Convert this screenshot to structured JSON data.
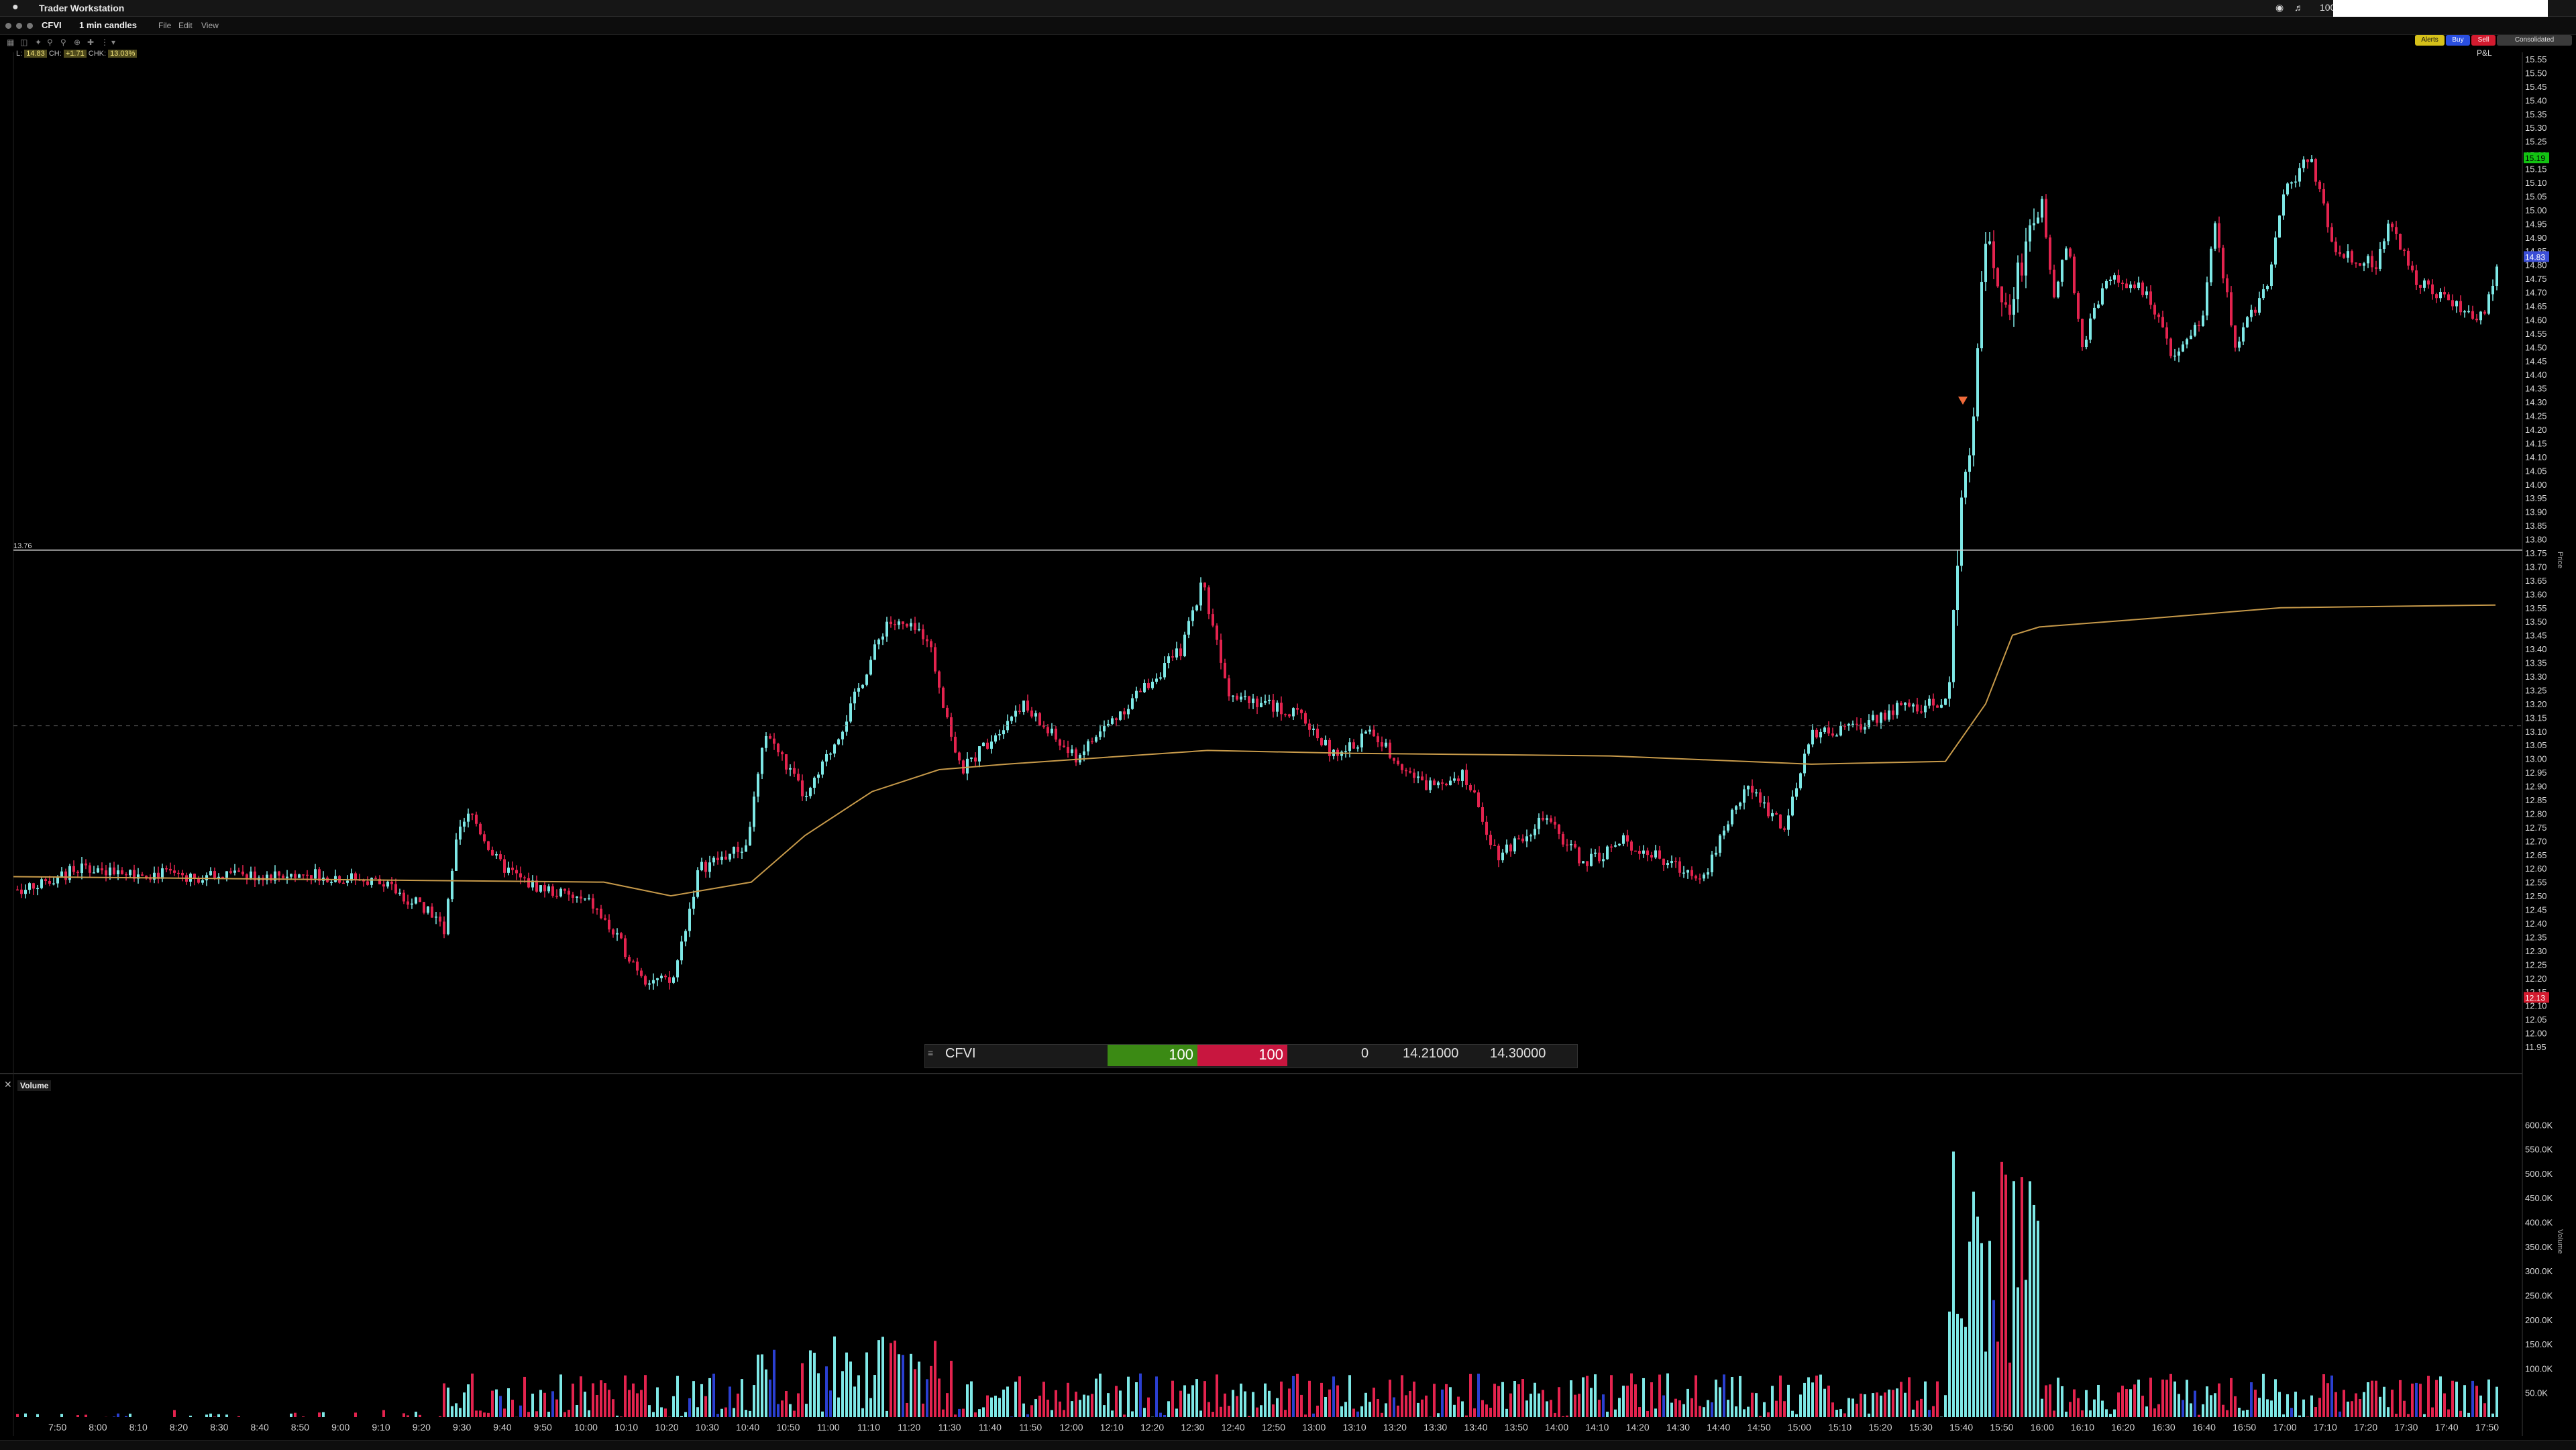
{
  "app": {
    "name": "Trader Workstation",
    "menu_right": [
      "100"
    ]
  },
  "window": {
    "symbol": "CFVI",
    "period": "1 min candles",
    "menus": [
      "File",
      "Edit",
      "View"
    ]
  },
  "buttons": {
    "alerts": "Alerts",
    "buy": "Buy",
    "sell": "Sell",
    "consolidated": "Consolidated",
    "pnl": "P&L"
  },
  "infobar": {
    "l_label": "L:",
    "l_val": "14.83",
    "ch_label": "CH:",
    "ch_val": "+1.71",
    "chpct_label": "CHK:",
    "chpct_val": "13.03%"
  },
  "price_chart": {
    "axis_min": 11.95,
    "axis_max": 15.55,
    "tick_labels": [
      "15.55",
      "15.50",
      "15.45",
      "15.40",
      "15.35",
      "15.30",
      "15.25",
      "15.20",
      "15.15",
      "15.10",
      "15.05",
      "15.00",
      "14.95",
      "14.90",
      "14.85",
      "14.80",
      "14.75",
      "14.70",
      "14.65",
      "14.60",
      "14.55",
      "14.50",
      "14.45",
      "14.40",
      "14.35",
      "14.30",
      "14.25",
      "14.20",
      "14.15",
      "14.10",
      "14.05",
      "14.00",
      "13.95",
      "13.90",
      "13.85",
      "13.80",
      "13.75",
      "13.70",
      "13.65",
      "13.60",
      "13.55",
      "13.50",
      "13.45",
      "13.40",
      "13.35",
      "13.30",
      "13.25",
      "13.20",
      "13.15",
      "13.10",
      "13.05",
      "13.00",
      "12.95",
      "12.90",
      "12.85",
      "12.80",
      "12.75",
      "12.70",
      "12.65",
      "12.60",
      "12.55",
      "12.50",
      "12.45",
      "12.40",
      "12.35",
      "12.30",
      "12.25",
      "12.20",
      "12.15",
      "12.10",
      "12.05",
      "12.00",
      "11.95"
    ],
    "hline_label": "13.76",
    "hline_price": 13.76,
    "dashed_price": 13.12,
    "badge_green": "15.19",
    "badge_blue": "14.83",
    "badge_red": "12.13",
    "axis_title": "Price"
  },
  "time_axis": [
    "7:50",
    "8:00",
    "8:10",
    "8:20",
    "8:30",
    "8:40",
    "8:50",
    "9:00",
    "9:10",
    "9:20",
    "9:30",
    "9:40",
    "9:50",
    "10:00",
    "10:10",
    "10:20",
    "10:30",
    "10:40",
    "10:50",
    "11:00",
    "11:10",
    "11:20",
    "11:30",
    "11:40",
    "11:50",
    "12:00",
    "12:10",
    "12:20",
    "12:30",
    "12:40",
    "12:50",
    "13:00",
    "13:10",
    "13:20",
    "13:30",
    "13:40",
    "13:50",
    "14:00",
    "14:10",
    "14:20",
    "14:30",
    "14:40",
    "14:50",
    "15:00",
    "15:10",
    "15:20",
    "15:30",
    "15:40",
    "15:50",
    "16:00",
    "16:10",
    "16:20",
    "16:30",
    "16:40",
    "16:50",
    "17:00",
    "17:10",
    "17:20",
    "17:30",
    "17:40",
    "17:50"
  ],
  "volume_panel": {
    "label": "Volume",
    "tick_labels": [
      "600.0K",
      "550.0K",
      "500.0K",
      "450.0K",
      "400.0K",
      "350.0K",
      "300.0K",
      "250.0K",
      "200.0K",
      "150.0K",
      "100.0K",
      "50.0K"
    ],
    "axis_title": "Volume"
  },
  "quote": {
    "symbol": "CFVI",
    "bid_size": "100",
    "ask_size": "100",
    "position": "0",
    "bid": "14.21000",
    "ask": "14.30000"
  },
  "colors": {
    "up": "#7ee8e6",
    "down": "#e3234e",
    "vwap": "#c79a4a",
    "hline": "#cfcfcf"
  }
}
